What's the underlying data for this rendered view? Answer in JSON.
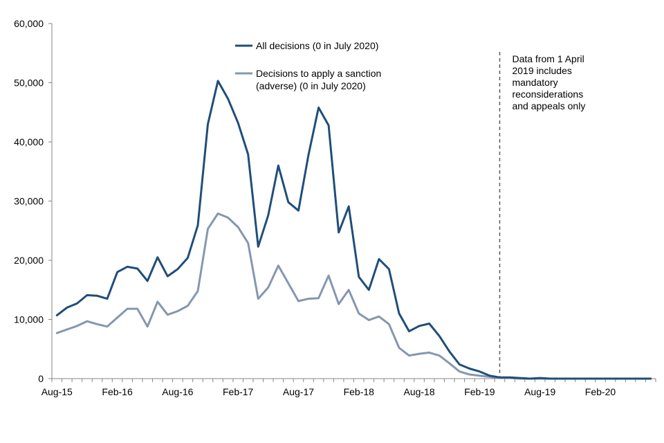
{
  "chart_data": {
    "type": "line",
    "title": "",
    "xlabel": "",
    "ylabel": "",
    "ylim": [
      0,
      60000
    ],
    "yticks": [
      0,
      10000,
      20000,
      30000,
      40000,
      50000,
      60000
    ],
    "ytick_labels": [
      "0",
      "10,000",
      "20,000",
      "30,000",
      "40,000",
      "50,000",
      "60,000"
    ],
    "xtick_labels": [
      "Aug-15",
      "Feb-16",
      "Aug-16",
      "Feb-17",
      "Aug-17",
      "Feb-18",
      "Aug-18",
      "Feb-19",
      "Aug-19",
      "Feb-20"
    ],
    "xtick_month_index": [
      0,
      6,
      12,
      18,
      24,
      30,
      36,
      42,
      48,
      54
    ],
    "n_months": 60,
    "grid": false,
    "legend_position": "top-center",
    "series": [
      {
        "name": "All decisions (0 in July 2020)",
        "color": "#1f4e79",
        "values": [
          10700,
          12000,
          12700,
          14100,
          14000,
          13500,
          18000,
          18900,
          18600,
          16500,
          20500,
          17300,
          18500,
          20400,
          25900,
          43000,
          50300,
          47300,
          43200,
          37900,
          22300,
          27600,
          36000,
          29800,
          28400,
          37800,
          45800,
          42800,
          24700,
          29100,
          17200,
          15000,
          20200,
          18500,
          11000,
          8000,
          8900,
          9300,
          7200,
          4600,
          2400,
          1700,
          1200,
          500,
          200,
          200,
          100,
          0,
          100,
          0,
          0,
          0,
          0,
          0,
          0,
          0,
          0,
          0,
          0,
          0
        ]
      },
      {
        "name": "Decisions to apply a sanction (adverse) (0 in July 2020)",
        "color": "#8497b0",
        "values": [
          7700,
          8300,
          8900,
          9700,
          9200,
          8800,
          10300,
          11800,
          11800,
          8800,
          13000,
          10800,
          11400,
          12300,
          14800,
          25300,
          27900,
          27200,
          25600,
          22900,
          13500,
          15400,
          19100,
          16100,
          13100,
          13500,
          13600,
          17400,
          12600,
          15000,
          11000,
          9900,
          10500,
          9200,
          5200,
          3900,
          4200,
          4400,
          3900,
          2600,
          1200,
          700,
          500,
          300,
          100,
          100,
          0,
          0,
          0,
          0,
          0,
          0,
          0,
          0,
          0,
          0,
          0,
          0,
          0,
          0
        ]
      }
    ],
    "annotation": {
      "text_lines": [
        "Data from 1 April",
        "2019 includes",
        "mandatory",
        "reconsiderations",
        "and appeals only"
      ],
      "month_index": 44.0,
      "line_style": "dashed"
    }
  }
}
